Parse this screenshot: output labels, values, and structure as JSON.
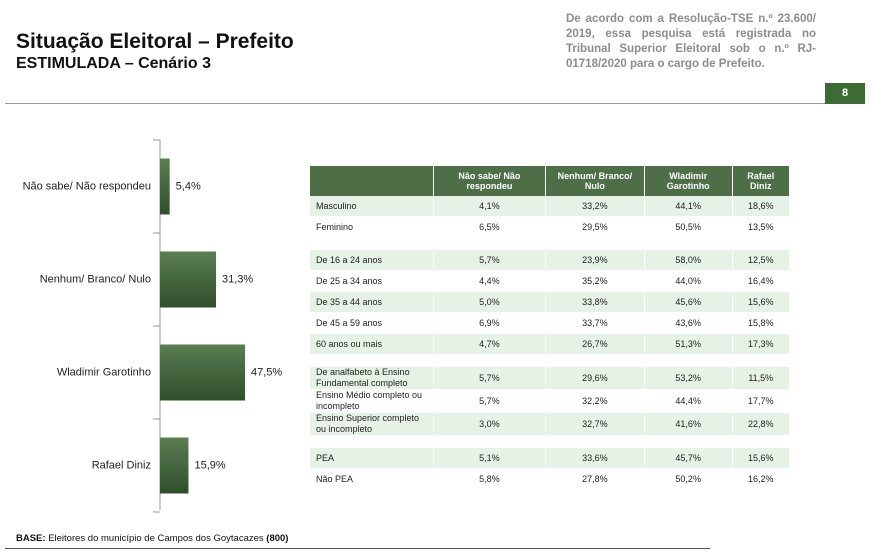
{
  "header": {
    "title": "Situação Eleitoral – Prefeito",
    "subtitle": "ESTIMULADA – Cenário 3",
    "note": "De acordo com a Resolução-TSE n.º 23.600/ 2019, essa pesquisa está registrada no Tribunal Superior Eleitoral sob o n.º RJ-01718/2020 para o cargo de Prefeito.",
    "page_number": "8"
  },
  "chart_data": {
    "type": "hbar",
    "color": "#3f6139",
    "categories": [
      "Não sabe/ Não respondeu",
      "Nenhum/ Branco/ Nulo",
      "Wladimir Garotinho",
      "Rafael Diniz"
    ],
    "values": [
      5.4,
      31.3,
      47.5,
      15.9
    ],
    "value_labels": [
      "5,4%",
      "31,3%",
      "47,5%",
      "15,9%"
    ]
  },
  "table": {
    "columns": [
      "Não sabe/ Não respondeu",
      "Nenhum/ Branco/ Nulo",
      "Wladimir Garotinho",
      "Rafael Diniz"
    ],
    "groups": [
      [
        [
          "Masculino",
          "4,1%",
          "33,2%",
          "44,1%",
          "18,6%"
        ],
        [
          "Feminino",
          "6,5%",
          "29,5%",
          "50,5%",
          "13,5%"
        ]
      ],
      [
        [
          "De 16 a 24 anos",
          "5,7%",
          "23,9%",
          "58,0%",
          "12,5%"
        ],
        [
          "De 25 a 34 anos",
          "4,4%",
          "35,2%",
          "44,0%",
          "16,4%"
        ],
        [
          "De 35 a 44 anos",
          "5,0%",
          "33,8%",
          "45,6%",
          "15,6%"
        ],
        [
          "De 45 a 59 anos",
          "6,9%",
          "33,7%",
          "43,6%",
          "15,8%"
        ],
        [
          "60 anos ou mais",
          "4,7%",
          "26,7%",
          "51,3%",
          "17,3%"
        ]
      ],
      [
        [
          "De analfabeto à Ensino Fundamental completo",
          "5,7%",
          "29,6%",
          "53,2%",
          "11,5%"
        ],
        [
          "Ensino Médio completo ou incompleto",
          "5,7%",
          "32,2%",
          "44,4%",
          "17,7%"
        ],
        [
          "Ensino Superior completo ou incompleto",
          "3,0%",
          "32,7%",
          "41,6%",
          "22,8%"
        ]
      ],
      [
        [
          "PEA",
          "5,1%",
          "33,6%",
          "45,7%",
          "15,6%"
        ],
        [
          "Não PEA",
          "5,8%",
          "27,8%",
          "50,2%",
          "16,2%"
        ]
      ]
    ]
  },
  "footer": {
    "base_label": "BASE:",
    "text": "Eleitores do município de Campos dos Goytacazes",
    "count": "(800)"
  }
}
